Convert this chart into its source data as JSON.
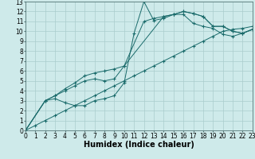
{
  "xlabel": "Humidex (Indice chaleur)",
  "xlim": [
    0,
    23
  ],
  "ylim": [
    0,
    13
  ],
  "xticks": [
    0,
    1,
    2,
    3,
    4,
    5,
    6,
    7,
    8,
    9,
    10,
    11,
    12,
    13,
    14,
    15,
    16,
    17,
    18,
    19,
    20,
    21,
    22,
    23
  ],
  "yticks": [
    0,
    1,
    2,
    3,
    4,
    5,
    6,
    7,
    8,
    9,
    10,
    11,
    12,
    13
  ],
  "bg_color": "#ceeaea",
  "grid_color": "#aacccc",
  "line_color": "#1a6b6b",
  "line1_x": [
    0,
    1,
    2,
    3,
    4,
    5,
    6,
    7,
    8,
    9,
    10,
    11,
    12,
    13,
    14,
    15,
    16,
    17,
    18,
    19,
    20,
    21,
    22,
    23
  ],
  "line1_y": [
    0,
    0.5,
    1.0,
    1.5,
    2.0,
    2.5,
    3.0,
    3.5,
    4.0,
    4.5,
    5.0,
    5.5,
    6.0,
    6.5,
    7.0,
    7.5,
    8.0,
    8.5,
    9.0,
    9.5,
    10.0,
    10.2,
    10.3,
    10.5
  ],
  "line2_x": [
    0,
    2,
    3,
    4,
    5,
    6,
    7,
    8,
    9,
    10,
    11,
    12,
    13,
    14,
    15,
    16,
    17,
    18,
    19,
    20,
    21,
    22,
    23
  ],
  "line2_y": [
    0,
    3.0,
    3.2,
    2.8,
    2.5,
    2.5,
    3.0,
    3.2,
    3.5,
    4.8,
    9.8,
    13.0,
    11.1,
    11.3,
    11.7,
    11.7,
    10.8,
    10.5,
    10.3,
    9.7,
    9.5,
    9.8,
    10.2
  ],
  "line3_x": [
    0,
    2,
    3,
    4,
    5,
    6,
    7,
    8,
    9,
    10,
    12,
    13,
    14,
    15,
    16,
    17,
    18,
    19,
    20,
    21,
    22,
    23
  ],
  "line3_y": [
    0,
    3.0,
    3.5,
    4.0,
    4.5,
    5.0,
    5.2,
    5.0,
    5.2,
    6.5,
    11.0,
    11.3,
    11.5,
    11.7,
    12.0,
    11.8,
    11.5,
    10.5,
    10.5,
    10.0,
    9.8,
    10.2
  ],
  "line4_x": [
    0,
    2,
    3,
    4,
    5,
    6,
    7,
    8,
    9,
    10,
    14,
    15,
    16,
    17,
    18,
    19,
    20,
    21,
    22,
    23
  ],
  "line4_y": [
    0,
    3.0,
    3.5,
    4.2,
    4.8,
    5.5,
    5.8,
    6.0,
    6.2,
    6.5,
    11.5,
    11.7,
    12.0,
    11.8,
    11.5,
    10.5,
    10.5,
    10.0,
    9.8,
    10.2
  ],
  "tick_fontsize": 5.5,
  "xlabel_fontsize": 7.0,
  "marker_size": 2.5,
  "linewidth": 0.7
}
